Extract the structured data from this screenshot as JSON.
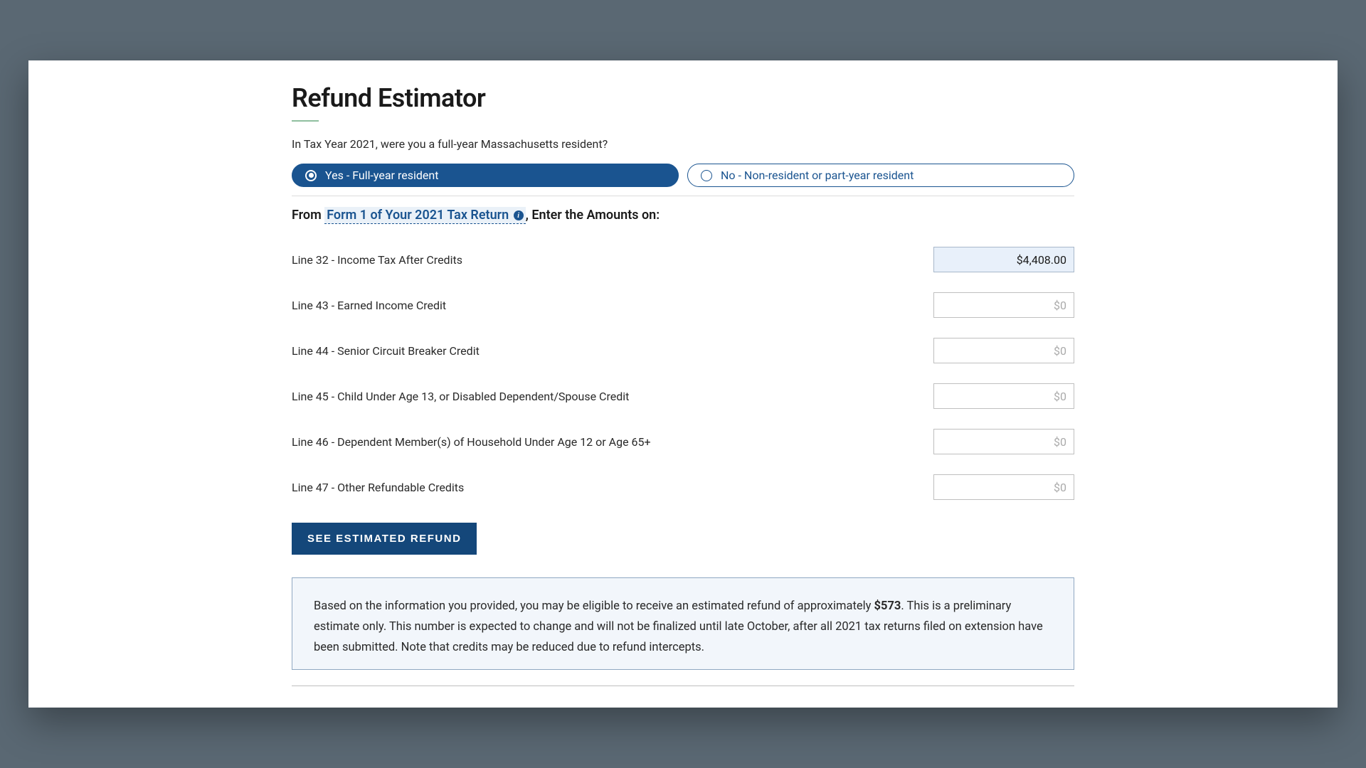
{
  "page_title": "Refund Estimator",
  "residency_question": "In Tax Year 2021, were you a full-year Massachusetts resident?",
  "options": {
    "yes": {
      "label": "Yes - Full-year resident",
      "selected": true
    },
    "no": {
      "label": "No - Non-resident or part-year resident",
      "selected": false
    }
  },
  "section_heading": {
    "prefix": "From ",
    "link": "Form 1 of Your 2021 Tax Return",
    "suffix": ", Enter the Amounts on:"
  },
  "lines": [
    {
      "id": "line32",
      "label": "Line 32 - Income Tax After Credits",
      "value": "$4,408.00",
      "placeholder": "$0",
      "filled": true
    },
    {
      "id": "line43",
      "label": "Line 43 - Earned Income Credit",
      "value": "",
      "placeholder": "$0",
      "filled": false
    },
    {
      "id": "line44",
      "label": "Line 44 - Senior Circuit Breaker Credit",
      "value": "",
      "placeholder": "$0",
      "filled": false
    },
    {
      "id": "line45",
      "label": "Line 45 - Child Under Age 13, or Disabled Dependent/Spouse Credit",
      "value": "",
      "placeholder": "$0",
      "filled": false
    },
    {
      "id": "line46",
      "label": "Line 46 - Dependent Member(s) of Household Under Age 12 or Age 65+",
      "value": "",
      "placeholder": "$0",
      "filled": false
    },
    {
      "id": "line47",
      "label": "Line 47 - Other Refundable Credits",
      "value": "",
      "placeholder": "$0",
      "filled": false
    }
  ],
  "estimate_button": "SEE ESTIMATED REFUND",
  "result": {
    "text_before": "Based on the information you provided, you may be eligible to receive an estimated refund of approximately ",
    "amount": "$573",
    "text_after": ". This is a preliminary estimate only. This number is expected to change and will not be finalized until late October, after all 2021 tax returns filed on extension have been submitted. Note that credits may be reduced due to refund intercepts."
  },
  "colors": {
    "page_bg": "#5a6873",
    "window_bg": "#ffffff",
    "primary": "#1a5490",
    "button_bg": "#14477a",
    "result_bg": "#f2f6fb",
    "result_border": "#8fa8c2",
    "input_filled_bg": "#e8f0fa",
    "underline": "#8fbf9f"
  }
}
